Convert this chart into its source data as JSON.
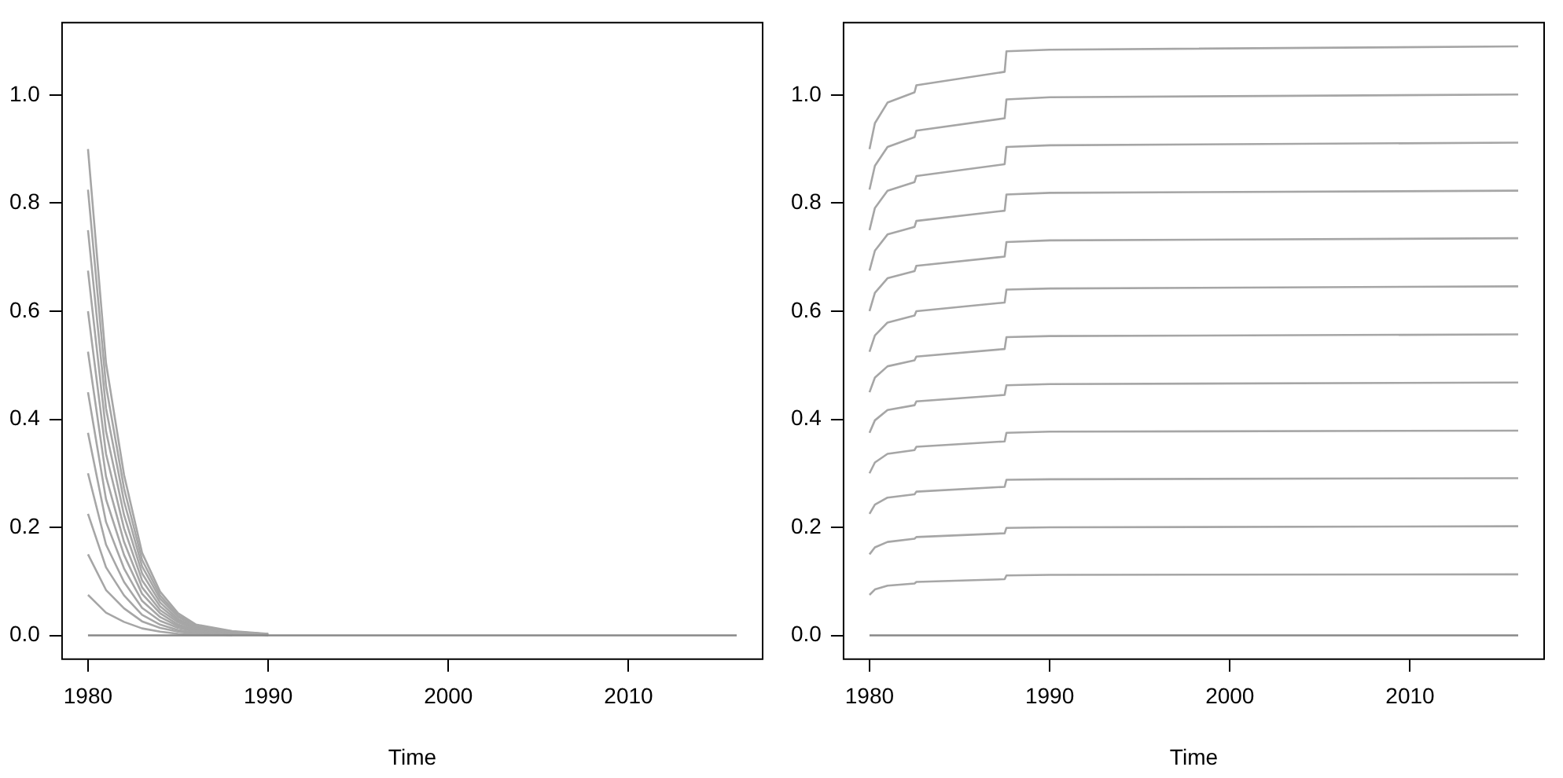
{
  "chart_data": [
    {
      "type": "line",
      "xlabel": "Time",
      "x": [
        1980,
        1981,
        1982,
        1983,
        1984,
        1985,
        1986,
        1988,
        1990,
        2000,
        2016
      ],
      "xlim": [
        1978.56,
        2017.44
      ],
      "ylim": [
        -0.044,
        1.134
      ],
      "xticks": [
        1980,
        1990,
        2000,
        2010
      ],
      "yticks": [
        {
          "value": 0,
          "label": "0.0"
        },
        {
          "value": 0.2,
          "label": "0.2"
        },
        {
          "value": 0.4,
          "label": "0.4"
        },
        {
          "value": 0.6,
          "label": "0.6"
        },
        {
          "value": 0.8,
          "label": "0.8"
        },
        {
          "value": 1,
          "label": "1.0"
        }
      ],
      "grid": false,
      "legend": false,
      "marker": "none",
      "line_style": "solid",
      "series": [
        {
          "color": "#888888",
          "values": [
            0,
            0,
            0,
            0,
            0,
            0,
            0,
            0,
            0,
            0,
            0
          ]
        },
        {
          "color": "#a6a6a6",
          "values": [
            0.075,
            0.042,
            0.025,
            0.013,
            0.007,
            0.003,
            0.002,
            0.001,
            null,
            null,
            null
          ]
        },
        {
          "color": "#a6a6a6",
          "values": [
            0.15,
            0.084,
            0.05,
            0.026,
            0.014,
            0.007,
            0.003,
            0.001,
            null,
            null,
            null
          ]
        },
        {
          "color": "#a6a6a6",
          "values": [
            0.225,
            0.126,
            0.074,
            0.038,
            0.02,
            0.01,
            0.005,
            0.002,
            0.001,
            null,
            null
          ]
        },
        {
          "color": "#a6a6a6",
          "values": [
            0.3,
            0.168,
            0.099,
            0.051,
            0.027,
            0.014,
            0.007,
            0.003,
            0.001,
            null,
            null
          ]
        },
        {
          "color": "#a6a6a6",
          "values": [
            0.375,
            0.21,
            0.124,
            0.064,
            0.034,
            0.017,
            0.008,
            0.003,
            0.001,
            null,
            null
          ]
        },
        {
          "color": "#a6a6a6",
          "values": [
            0.45,
            0.252,
            0.149,
            0.077,
            0.041,
            0.02,
            0.01,
            0.004,
            0.001,
            null,
            null
          ]
        },
        {
          "color": "#a6a6a6",
          "values": [
            0.525,
            0.294,
            0.173,
            0.089,
            0.047,
            0.024,
            0.012,
            0.005,
            0.002,
            null,
            null
          ]
        },
        {
          "color": "#a6a6a6",
          "values": [
            0.6,
            0.336,
            0.198,
            0.102,
            0.054,
            0.027,
            0.013,
            0.005,
            0.002,
            null,
            null
          ]
        },
        {
          "color": "#a6a6a6",
          "values": [
            0.675,
            0.378,
            0.223,
            0.115,
            0.061,
            0.03,
            0.015,
            0.006,
            0.002,
            null,
            null
          ]
        },
        {
          "color": "#a6a6a6",
          "values": [
            0.75,
            0.42,
            0.248,
            0.128,
            0.068,
            0.034,
            0.017,
            0.007,
            0.002,
            null,
            null
          ]
        },
        {
          "color": "#a6a6a6",
          "values": [
            0.825,
            0.462,
            0.272,
            0.14,
            0.074,
            0.037,
            0.018,
            0.007,
            0.002,
            null,
            null
          ]
        },
        {
          "color": "#a6a6a6",
          "values": [
            0.9,
            0.504,
            0.297,
            0.153,
            0.081,
            0.041,
            0.02,
            0.008,
            0.003,
            null,
            null
          ]
        }
      ]
    },
    {
      "type": "line",
      "xlabel": "Time",
      "x": [
        1980,
        1980.3,
        1981,
        1982.5,
        1982.6,
        1987.5,
        1987.6,
        1990,
        2016
      ],
      "xlim": [
        1978.56,
        2017.44
      ],
      "ylim": [
        -0.044,
        1.134
      ],
      "xticks": [
        1980,
        1990,
        2000,
        2010
      ],
      "yticks": [
        {
          "value": 0,
          "label": "0.0"
        },
        {
          "value": 0.2,
          "label": "0.2"
        },
        {
          "value": 0.4,
          "label": "0.4"
        },
        {
          "value": 0.6,
          "label": "0.6"
        },
        {
          "value": 0.8,
          "label": "0.8"
        },
        {
          "value": 1,
          "label": "1.0"
        }
      ],
      "grid": false,
      "legend": false,
      "marker": "none",
      "line_style": "solid",
      "series": [
        {
          "color": "#888888",
          "values": [
            0,
            0,
            0,
            0,
            0,
            0,
            0,
            0,
            0
          ]
        },
        {
          "color": "#a6a6a6",
          "values": [
            0.075,
            0.085,
            0.092,
            0.096,
            0.099,
            0.104,
            0.111,
            0.112,
            0.113
          ]
        },
        {
          "color": "#a6a6a6",
          "values": [
            0.15,
            0.163,
            0.173,
            0.179,
            0.182,
            0.189,
            0.199,
            0.2,
            0.202
          ]
        },
        {
          "color": "#a6a6a6",
          "values": [
            0.225,
            0.242,
            0.255,
            0.261,
            0.266,
            0.275,
            0.288,
            0.289,
            0.291
          ]
        },
        {
          "color": "#a6a6a6",
          "values": [
            0.3,
            0.32,
            0.336,
            0.343,
            0.349,
            0.359,
            0.375,
            0.377,
            0.379
          ]
        },
        {
          "color": "#a6a6a6",
          "values": [
            0.375,
            0.398,
            0.417,
            0.426,
            0.433,
            0.445,
            0.463,
            0.465,
            0.468
          ]
        },
        {
          "color": "#a6a6a6",
          "values": [
            0.45,
            0.477,
            0.498,
            0.509,
            0.516,
            0.53,
            0.552,
            0.554,
            0.557
          ]
        },
        {
          "color": "#a6a6a6",
          "values": [
            0.525,
            0.555,
            0.579,
            0.592,
            0.6,
            0.616,
            0.64,
            0.642,
            0.646
          ]
        },
        {
          "color": "#a6a6a6",
          "values": [
            0.6,
            0.634,
            0.661,
            0.674,
            0.684,
            0.701,
            0.728,
            0.731,
            0.735
          ]
        },
        {
          "color": "#a6a6a6",
          "values": [
            0.675,
            0.712,
            0.742,
            0.756,
            0.767,
            0.786,
            0.816,
            0.819,
            0.823
          ]
        },
        {
          "color": "#a6a6a6",
          "values": [
            0.75,
            0.791,
            0.823,
            0.839,
            0.85,
            0.872,
            0.904,
            0.907,
            0.912
          ]
        },
        {
          "color": "#a6a6a6",
          "values": [
            0.825,
            0.869,
            0.904,
            0.922,
            0.934,
            0.957,
            0.992,
            0.996,
            1.001
          ]
        },
        {
          "color": "#a6a6a6",
          "values": [
            0.9,
            0.948,
            0.986,
            1.005,
            1.018,
            1.043,
            1.081,
            1.084,
            1.09
          ]
        }
      ]
    }
  ]
}
